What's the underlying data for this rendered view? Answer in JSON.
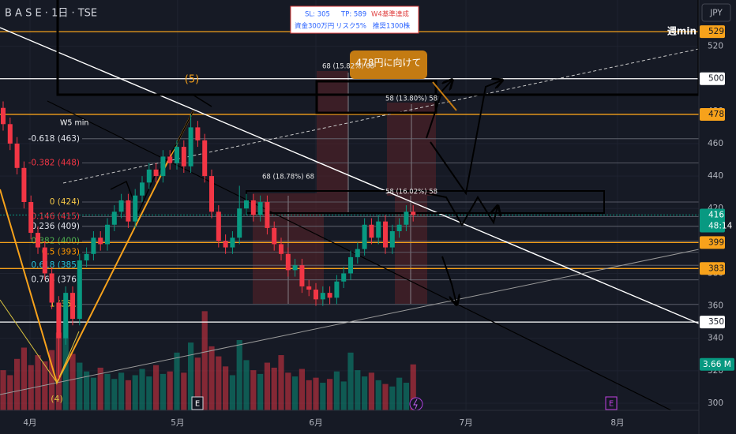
{
  "header": {
    "symbol": "B A S E · 1日 · TSE"
  },
  "info_box": {
    "sl": "SL: 305",
    "tp": "TP: 589",
    "status": "W4基準達成",
    "capital": "資金300万円",
    "risk": "リスク5%",
    "shares": "推奨1300株"
  },
  "chart_data": {
    "type": "candlestick",
    "currency": "JPY",
    "categories": [
      null,
      null,
      null,
      null,
      null,
      null,
      null,
      null,
      null,
      null,
      null,
      null,
      null,
      null,
      null,
      null,
      null,
      null,
      null,
      null,
      null,
      null,
      null,
      null,
      null,
      null,
      null,
      null,
      null,
      null,
      null,
      null,
      null,
      null,
      null,
      null,
      null,
      null,
      null,
      null,
      null,
      null,
      null,
      null,
      null,
      null,
      null,
      null,
      null,
      null,
      null,
      null,
      null,
      null,
      null,
      null,
      null,
      null,
      null,
      null
    ],
    "open": [
      482,
      472,
      460,
      445,
      424,
      405,
      396,
      380,
      362,
      340,
      368,
      352,
      388,
      392,
      402,
      398,
      410,
      418,
      425,
      412,
      428,
      436,
      444,
      440,
      452,
      448,
      458,
      446,
      470,
      462,
      440,
      418,
      400,
      396,
      402,
      420,
      425,
      416,
      424,
      408,
      398,
      392,
      382,
      385,
      372,
      370,
      364,
      368,
      365,
      375,
      380,
      390,
      395,
      410,
      402,
      412,
      396,
      406,
      410,
      418
    ],
    "high": [
      486,
      476,
      464,
      449,
      428,
      409,
      400,
      384,
      366,
      372,
      372,
      392,
      396,
      406,
      406,
      414,
      422,
      429,
      429,
      432,
      440,
      448,
      448,
      456,
      456,
      462,
      462,
      478,
      474,
      466,
      444,
      422,
      404,
      406,
      434,
      429,
      429,
      428,
      428,
      412,
      402,
      396,
      389,
      389,
      376,
      374,
      372,
      372,
      379,
      384,
      394,
      399,
      414,
      414,
      416,
      416,
      410,
      414,
      422,
      422
    ],
    "low": [
      468,
      456,
      441,
      420,
      401,
      392,
      376,
      358,
      315,
      336,
      348,
      348,
      384,
      388,
      394,
      394,
      406,
      414,
      408,
      408,
      424,
      432,
      436,
      436,
      444,
      444,
      442,
      442,
      458,
      436,
      414,
      396,
      392,
      392,
      398,
      416,
      412,
      412,
      404,
      394,
      388,
      378,
      378,
      368,
      366,
      360,
      360,
      361,
      361,
      371,
      376,
      386,
      391,
      398,
      398,
      392,
      392,
      402,
      406,
      412
    ],
    "close": [
      472,
      460,
      445,
      424,
      405,
      396,
      380,
      362,
      340,
      368,
      352,
      388,
      392,
      402,
      398,
      410,
      418,
      425,
      412,
      428,
      436,
      444,
      440,
      452,
      448,
      458,
      446,
      470,
      462,
      440,
      418,
      400,
      396,
      402,
      420,
      425,
      416,
      424,
      408,
      398,
      392,
      382,
      385,
      372,
      370,
      364,
      368,
      365,
      375,
      380,
      390,
      395,
      410,
      402,
      412,
      396,
      406,
      410,
      418,
      416
    ],
    "up_color": "#089981",
    "down_color": "#f23645",
    "volume": {
      "values": [
        3.2,
        2.8,
        4.1,
        5.0,
        3.6,
        4.4,
        3.9,
        4.8,
        6.2,
        7.0,
        4.5,
        3.8,
        3.1,
        2.6,
        3.4,
        2.9,
        2.5,
        3.0,
        2.4,
        2.8,
        3.3,
        2.7,
        3.6,
        2.9,
        3.1,
        4.6,
        3.0,
        5.4,
        4.2,
        7.9,
        5.1,
        4.3,
        3.5,
        2.8,
        5.6,
        4.0,
        3.2,
        2.9,
        3.8,
        3.4,
        4.4,
        3.0,
        2.7,
        3.3,
        2.4,
        2.6,
        2.2,
        2.5,
        3.1,
        2.3,
        4.6,
        3.2,
        2.7,
        3.0,
        2.4,
        2.1,
        1.9,
        2.6,
        2.2,
        3.66
      ],
      "value_labels": [
        null,
        null,
        null,
        null,
        null,
        null,
        null,
        null,
        null,
        null,
        null,
        null,
        null,
        null,
        null,
        null,
        null,
        null,
        null,
        null,
        null,
        null,
        null,
        null,
        null,
        null,
        null,
        null,
        null,
        null,
        null,
        null,
        null,
        null,
        null,
        null,
        null,
        null,
        null,
        null,
        null,
        null,
        null,
        null,
        null,
        null,
        null,
        null,
        null,
        null,
        null,
        null,
        null,
        null,
        null,
        null,
        null,
        null,
        null,
        "3.66 M"
      ]
    },
    "xlim": [
      -0.4545,
      100.11
    ],
    "xticks": [
      {
        "value": 3.86,
        "label": "4月"
      },
      {
        "value": 25.1,
        "label": "5月"
      },
      {
        "value": 45,
        "label": "6月"
      },
      {
        "value": 66.6,
        "label": "7月"
      },
      {
        "value": 88.4,
        "label": "8月"
      }
    ],
    "ylim": [
      295.6,
      548.5
    ],
    "yticks": [
      300,
      320,
      340,
      360,
      380,
      400,
      420,
      440,
      460,
      480,
      500,
      520
    ],
    "y2lim": [
      0,
      32.7
    ],
    "grid": true,
    "price_markers": [
      {
        "value": 529,
        "color": "#f7a21b"
      },
      {
        "value": 500,
        "color": "#ffffff"
      },
      {
        "value": 478,
        "color": "#f7a21b"
      },
      {
        "value": 416,
        "color": "#089981",
        "countdown": "48:14"
      },
      {
        "value": 399,
        "color": "#f7a21b"
      },
      {
        "value": 383,
        "color": "#f7a21b"
      },
      {
        "value": 350,
        "color": "#ffffff"
      }
    ],
    "fib_levels": [
      {
        "label": "-0.618 (463)",
        "value": 463,
        "color": "#e0e3eb"
      },
      {
        "label": "-0.382 (448)",
        "value": 448,
        "color": "#f23645"
      },
      {
        "label": "0 (424)",
        "value": 424,
        "color": "#f7c948"
      },
      {
        "label": "0.146 (415)",
        "value": 415,
        "color": "#f23645"
      },
      {
        "label": "0.236 (409)",
        "value": 409,
        "color": "#e0e3eb"
      },
      {
        "label": "0.382 (400)",
        "value": 400,
        "color": "#4caf50"
      },
      {
        "label": "0.5 (393)",
        "value": 393,
        "color": "#ff9800"
      },
      {
        "label": "0.618 (385)",
        "value": 385,
        "color": "#26c6da"
      },
      {
        "label": "0.764 (376)",
        "value": 376,
        "color": "#e0e3eb"
      },
      {
        "label": "1 (361)",
        "value": 361,
        "color": "#ffeb3b"
      }
    ],
    "annotations": {
      "weekly_min": "週min",
      "wave5": "(5)",
      "wave4": "(4)",
      "w5_min": "W5 min",
      "callout": "478円に向けて",
      "measure_1": "68 (15.82%) 68",
      "measure_2": "58 (13.80%) 58",
      "measure_3": "68 (18.78%) 68",
      "measure_4": "58 (16.02%) 58",
      "earnings_1": "E",
      "earnings_2": "E"
    }
  }
}
